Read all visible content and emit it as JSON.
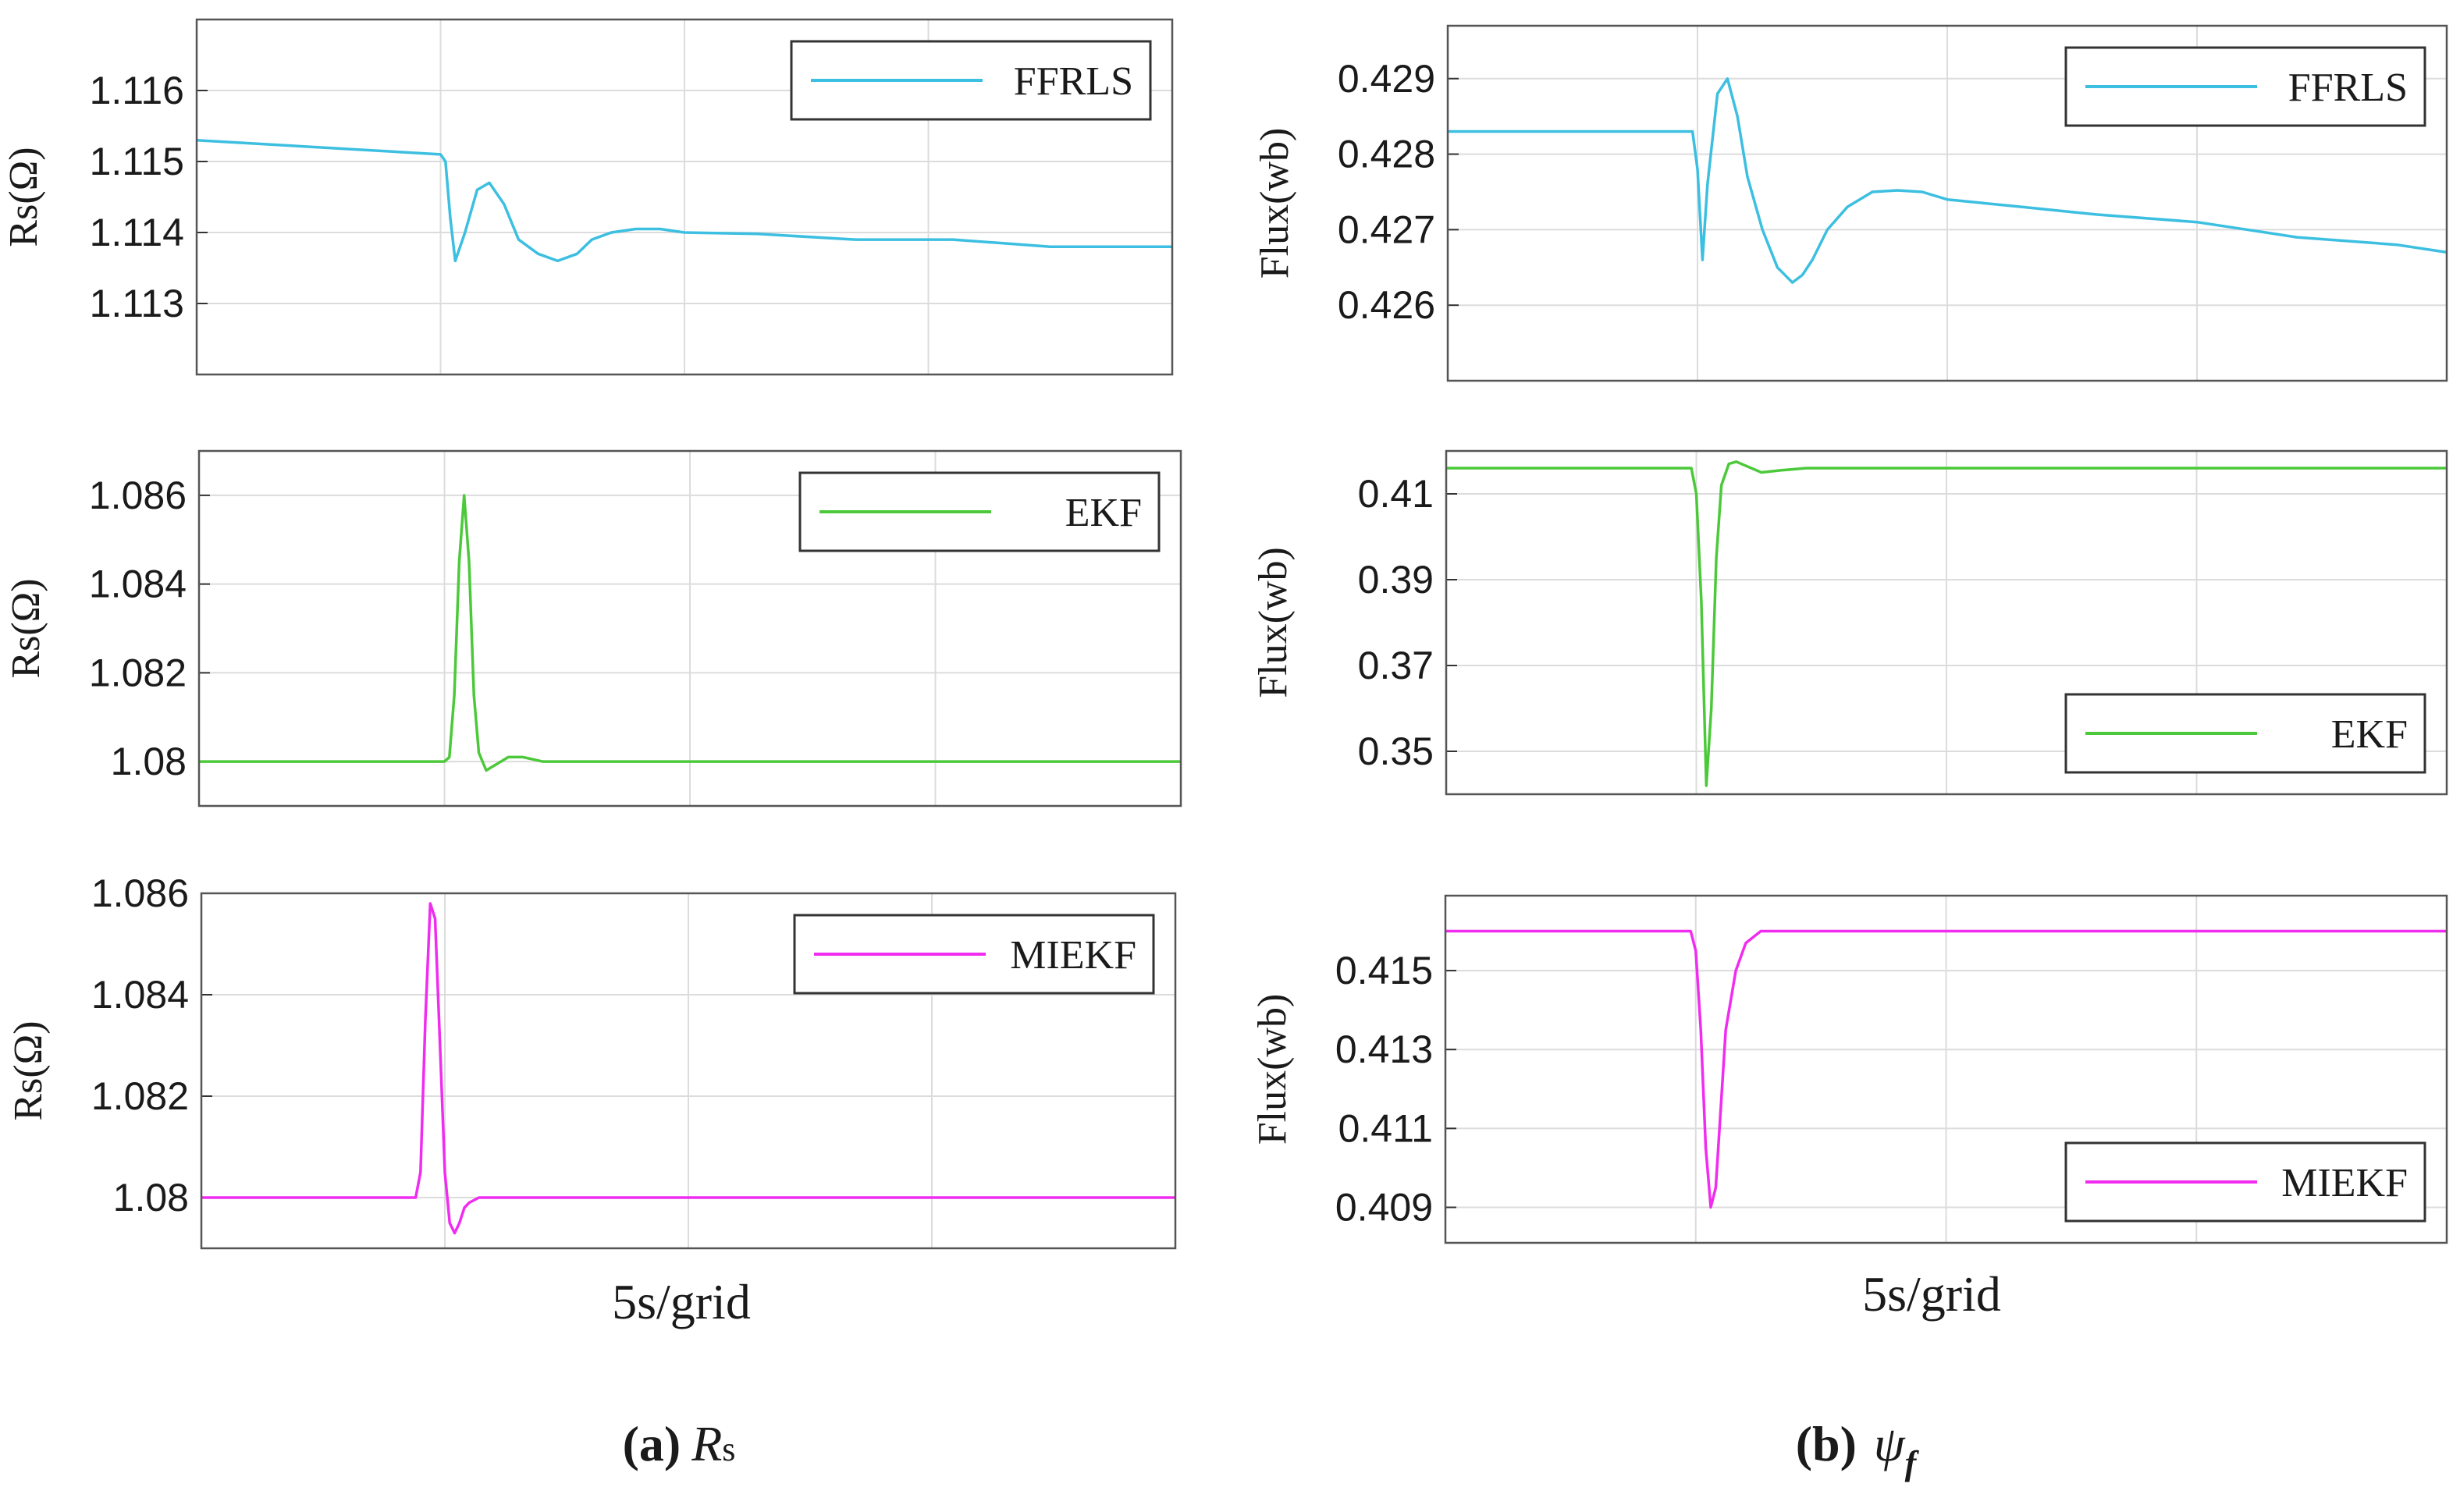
{
  "figure": {
    "x_axis_label": "5s/grid",
    "captions": [
      {
        "bold": "(a)",
        "symbol": "R",
        "sub": "s"
      },
      {
        "bold": "(b)",
        "symbol": "ψ",
        "sub": "f"
      }
    ]
  },
  "chart_data": [
    {
      "id": "rs_ffrls",
      "type": "line",
      "ylabel": "Rs(Ω)",
      "ylim": [
        1.112,
        1.117
      ],
      "yticks": [
        1.113,
        1.114,
        1.115,
        1.116
      ],
      "xlim": [
        0,
        4
      ],
      "legend": "FFRLS",
      "legend_position": "top-right",
      "color": "#3cbfe0",
      "series": [
        {
          "name": "FFRLS",
          "x": [
            0,
            1.0,
            1.02,
            1.04,
            1.06,
            1.1,
            1.15,
            1.2,
            1.26,
            1.32,
            1.4,
            1.48,
            1.56,
            1.62,
            1.7,
            1.8,
            1.9,
            2.0,
            2.3,
            2.7,
            3.1,
            3.5,
            3.8,
            4.0
          ],
          "y": [
            1.1153,
            1.1151,
            1.115,
            1.1142,
            1.1136,
            1.114,
            1.1146,
            1.1147,
            1.1144,
            1.1139,
            1.1137,
            1.1136,
            1.1137,
            1.1139,
            1.114,
            1.11405,
            1.11405,
            1.114,
            1.11398,
            1.1139,
            1.1139,
            1.1138,
            1.1138,
            1.1138
          ]
        }
      ]
    },
    {
      "id": "rs_ekf",
      "type": "line",
      "ylabel": "Rs(Ω)",
      "ylim": [
        1.079,
        1.087
      ],
      "yticks": [
        1.08,
        1.082,
        1.084,
        1.086
      ],
      "xlim": [
        0,
        4
      ],
      "legend": "EKF",
      "legend_position": "top-right",
      "color": "#4cc93a",
      "series": [
        {
          "name": "EKF",
          "x": [
            0,
            1.0,
            1.02,
            1.04,
            1.06,
            1.08,
            1.1,
            1.12,
            1.14,
            1.17,
            1.2,
            1.26,
            1.32,
            1.4,
            1.5,
            1.6,
            2.0,
            4.0
          ],
          "y": [
            1.08,
            1.08,
            1.0801,
            1.0815,
            1.0845,
            1.086,
            1.0845,
            1.0815,
            1.0802,
            1.0798,
            1.0799,
            1.0801,
            1.0801,
            1.08,
            1.08,
            1.08,
            1.08,
            1.08
          ]
        }
      ]
    },
    {
      "id": "rs_miekf",
      "type": "line",
      "ylabel": "Rs(Ω)",
      "ylim": [
        1.079,
        1.086
      ],
      "yticks": [
        1.08,
        1.082,
        1.084,
        1.086
      ],
      "xlim": [
        0,
        4
      ],
      "legend": "MIEKF",
      "legend_position": "top-right",
      "color": "#f02cf0",
      "series": [
        {
          "name": "MIEKF",
          "x": [
            0,
            0.88,
            0.9,
            0.92,
            0.94,
            0.96,
            0.98,
            1.0,
            1.02,
            1.04,
            1.06,
            1.08,
            1.1,
            1.14,
            1.2,
            1.3,
            4.0
          ],
          "y": [
            1.08,
            1.08,
            1.0805,
            1.0835,
            1.0858,
            1.0855,
            1.083,
            1.0805,
            1.0795,
            1.0793,
            1.0795,
            1.0798,
            1.0799,
            1.08,
            1.08,
            1.08,
            1.08
          ]
        }
      ]
    },
    {
      "id": "flux_ffrls",
      "type": "line",
      "ylabel": "Flux(wb)",
      "ylim": [
        0.425,
        0.4297
      ],
      "yticks": [
        0.426,
        0.427,
        0.428,
        0.429
      ],
      "xlim": [
        0,
        4
      ],
      "legend": "FFRLS",
      "legend_position": "top-right",
      "color": "#3cbfe0",
      "series": [
        {
          "name": "FFRLS",
          "x": [
            0,
            0.95,
            0.98,
            1.0,
            1.02,
            1.04,
            1.08,
            1.12,
            1.16,
            1.2,
            1.26,
            1.32,
            1.38,
            1.42,
            1.46,
            1.52,
            1.6,
            1.7,
            1.8,
            1.9,
            2.0,
            2.3,
            2.6,
            3.0,
            3.4,
            3.8,
            4.0
          ],
          "y": [
            0.4283,
            0.4283,
            0.4283,
            0.4278,
            0.4266,
            0.4276,
            0.4288,
            0.429,
            0.4285,
            0.4277,
            0.427,
            0.4265,
            0.4263,
            0.4264,
            0.4266,
            0.427,
            0.4273,
            0.4275,
            0.42752,
            0.4275,
            0.4274,
            0.4273,
            0.4272,
            0.4271,
            0.4269,
            0.4268,
            0.4267
          ]
        }
      ]
    },
    {
      "id": "flux_ekf",
      "type": "line",
      "ylabel": "Flux(wb)",
      "ylim": [
        0.34,
        0.42
      ],
      "yticks": [
        0.35,
        0.37,
        0.39,
        0.41
      ],
      "xlim": [
        0,
        4
      ],
      "legend": "EKF",
      "legend_position": "bottom-right",
      "color": "#4cc93a",
      "series": [
        {
          "name": "EKF",
          "x": [
            0,
            0.98,
            1.0,
            1.02,
            1.04,
            1.06,
            1.08,
            1.1,
            1.13,
            1.16,
            1.2,
            1.26,
            1.34,
            1.44,
            1.6,
            4.0
          ],
          "y": [
            0.416,
            0.416,
            0.41,
            0.385,
            0.342,
            0.36,
            0.395,
            0.412,
            0.417,
            0.4175,
            0.4165,
            0.415,
            0.4155,
            0.416,
            0.416,
            0.416
          ]
        }
      ]
    },
    {
      "id": "flux_miekf",
      "type": "line",
      "ylabel": "Flux(wb)",
      "ylim": [
        0.4081,
        0.4169
      ],
      "yticks": [
        0.409,
        0.411,
        0.413,
        0.415
      ],
      "xlim": [
        0,
        4
      ],
      "legend": "MIEKF",
      "legend_position": "bottom-right",
      "color": "#f02cf0",
      "series": [
        {
          "name": "MIEKF",
          "x": [
            0,
            0.98,
            1.0,
            1.02,
            1.04,
            1.06,
            1.08,
            1.1,
            1.12,
            1.16,
            1.2,
            1.26,
            1.32,
            1.4,
            4.0
          ],
          "y": [
            0.416,
            0.416,
            0.4155,
            0.4135,
            0.4105,
            0.409,
            0.4095,
            0.4115,
            0.4135,
            0.415,
            0.4157,
            0.416,
            0.416,
            0.416,
            0.416
          ]
        }
      ]
    }
  ]
}
